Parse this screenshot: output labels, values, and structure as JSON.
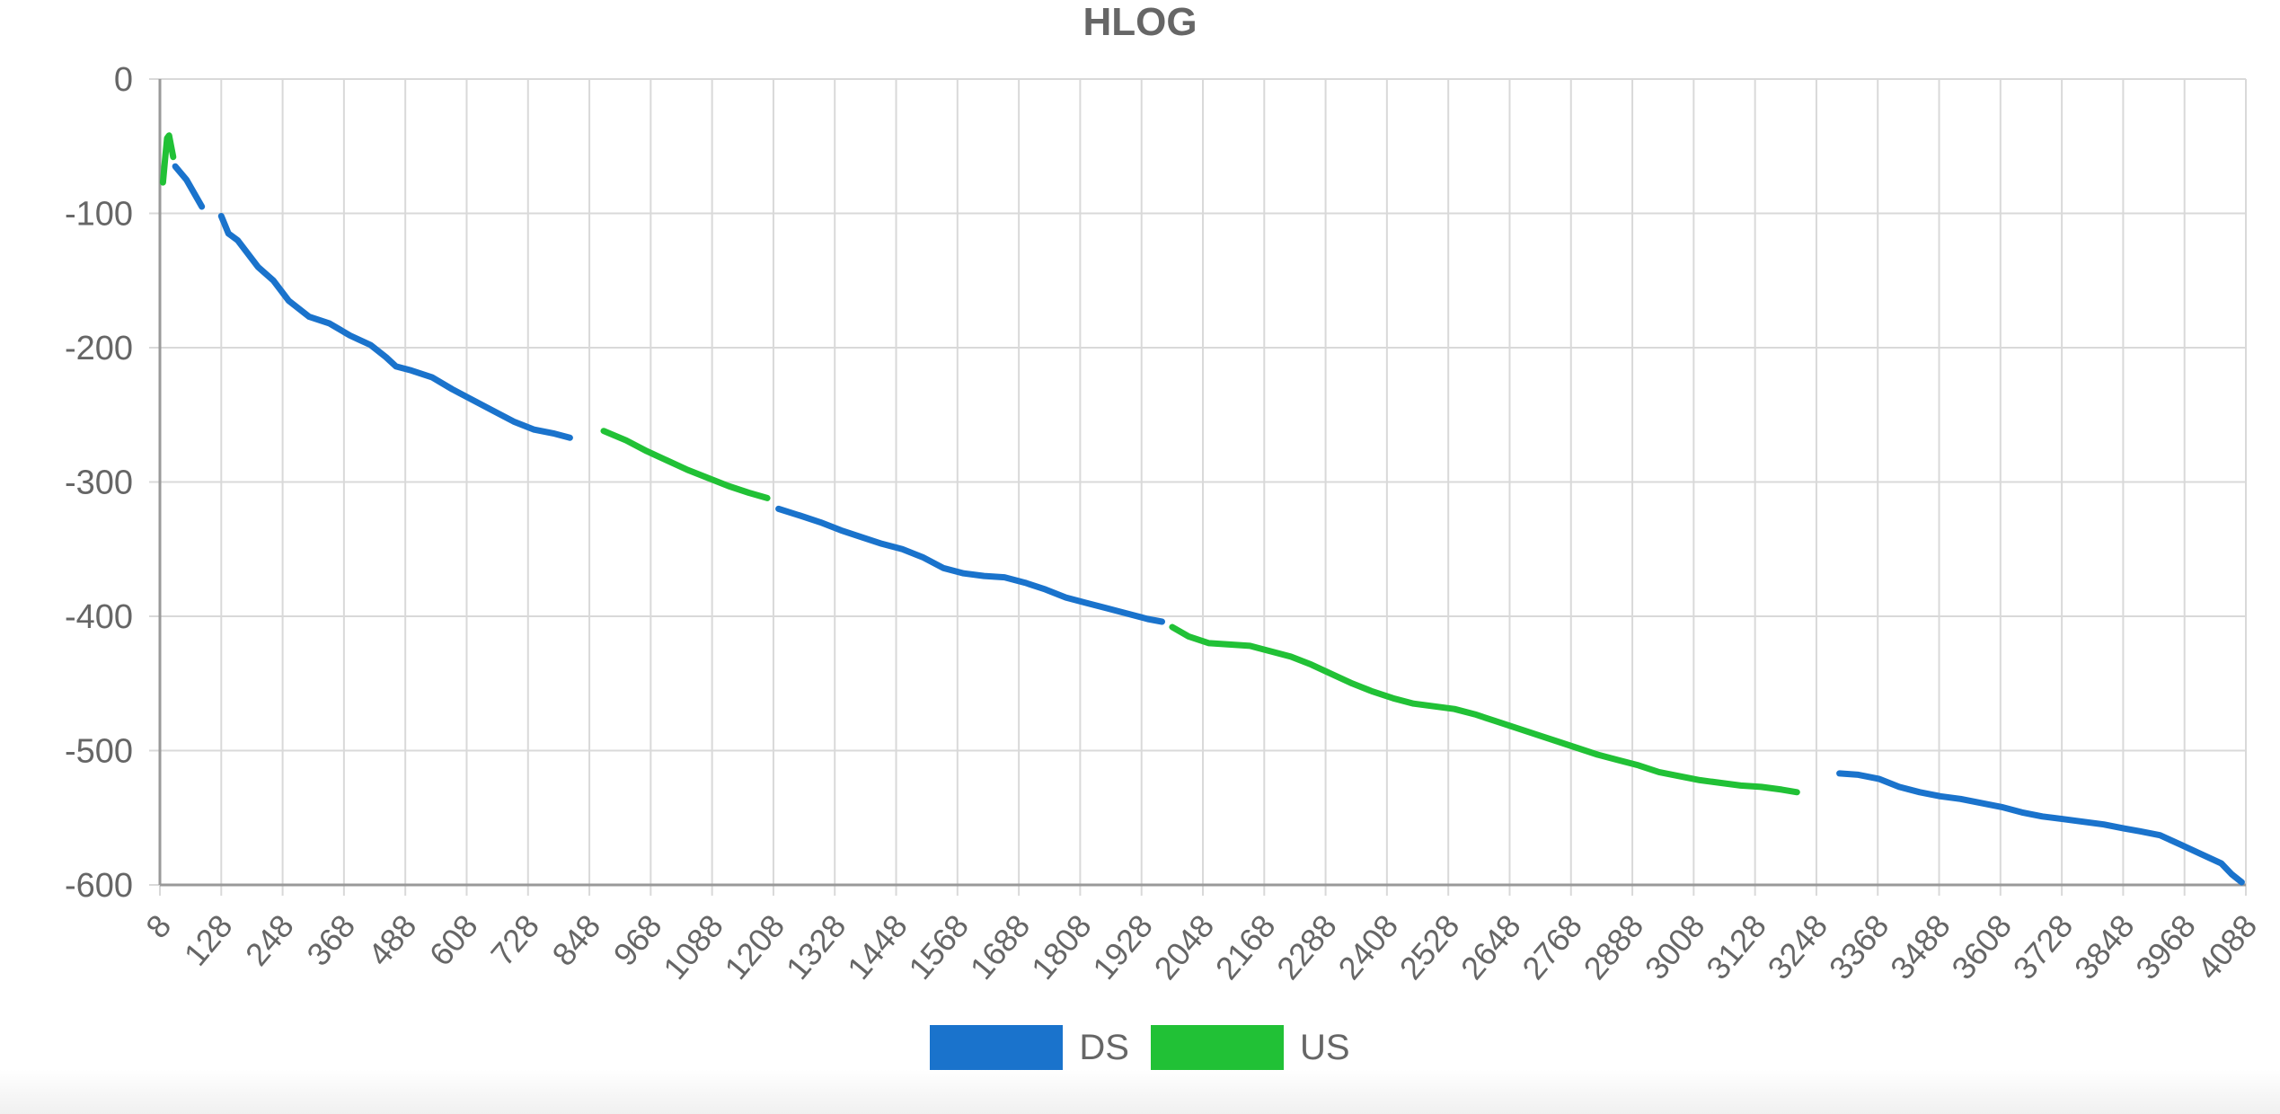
{
  "chart_data": {
    "type": "line",
    "title": "HLOG",
    "xlabel": "",
    "ylabel": "",
    "ylim": [
      -600,
      0
    ],
    "yticks": [
      0,
      -100,
      -200,
      -300,
      -400,
      -500,
      -600
    ],
    "xlim": [
      8,
      4088
    ],
    "xticks": [
      8,
      128,
      248,
      368,
      488,
      608,
      728,
      848,
      968,
      1088,
      1208,
      1328,
      1448,
      1568,
      1688,
      1808,
      1928,
      2048,
      2168,
      2288,
      2408,
      2528,
      2648,
      2768,
      2888,
      3008,
      3128,
      3248,
      3368,
      3488,
      3608,
      3728,
      3848,
      3968,
      4088
    ],
    "grid": true,
    "legend_position": "bottom",
    "series": [
      {
        "name": "DS",
        "color": "#1a73cc",
        "segments": [
          [
            [
              38,
              -65
            ],
            [
              60,
              -75
            ],
            [
              90,
              -95
            ]
          ],
          [
            [
              128,
              -102
            ],
            [
              142,
              -115
            ],
            [
              160,
              -120
            ],
            [
              200,
              -140
            ],
            [
              230,
              -150
            ],
            [
              260,
              -165
            ],
            [
              300,
              -177
            ],
            [
              340,
              -182
            ],
            [
              380,
              -191
            ],
            [
              420,
              -198
            ],
            [
              450,
              -207
            ],
            [
              470,
              -214
            ],
            [
              500,
              -217
            ],
            [
              540,
              -222
            ],
            [
              580,
              -231
            ],
            [
              620,
              -239
            ],
            [
              660,
              -247
            ],
            [
              700,
              -255
            ],
            [
              740,
              -261
            ],
            [
              780,
              -264
            ],
            [
              810,
              -267
            ]
          ],
          [
            [
              1218,
              -320
            ],
            [
              1260,
              -325
            ],
            [
              1300,
              -330
            ],
            [
              1340,
              -336
            ],
            [
              1380,
              -341
            ],
            [
              1420,
              -346
            ],
            [
              1460,
              -350
            ],
            [
              1500,
              -356
            ],
            [
              1540,
              -364
            ],
            [
              1580,
              -368
            ],
            [
              1620,
              -370
            ],
            [
              1660,
              -371
            ],
            [
              1700,
              -375
            ],
            [
              1740,
              -380
            ],
            [
              1780,
              -386
            ],
            [
              1820,
              -390
            ],
            [
              1860,
              -394
            ],
            [
              1900,
              -398
            ],
            [
              1940,
              -402
            ],
            [
              1968,
              -404
            ]
          ],
          [
            [
              3293,
              -517
            ],
            [
              3330,
              -518
            ],
            [
              3370,
              -521
            ],
            [
              3410,
              -527
            ],
            [
              3450,
              -531
            ],
            [
              3490,
              -534
            ],
            [
              3530,
              -536
            ],
            [
              3570,
              -539
            ],
            [
              3610,
              -542
            ],
            [
              3650,
              -546
            ],
            [
              3690,
              -549
            ],
            [
              3730,
              -551
            ],
            [
              3770,
              -553
            ],
            [
              3810,
              -555
            ],
            [
              3850,
              -558
            ],
            [
              3880,
              -560
            ],
            [
              3920,
              -563
            ],
            [
              3960,
              -570
            ],
            [
              4000,
              -577
            ],
            [
              4040,
              -584
            ],
            [
              4060,
              -592
            ],
            [
              4080,
              -598
            ]
          ]
        ]
      },
      {
        "name": "US",
        "color": "#21c136",
        "segments": [
          [
            [
              14,
              -77
            ],
            [
              18,
              -60
            ],
            [
              22,
              -44
            ],
            [
              26,
              -42
            ],
            [
              30,
              -50
            ],
            [
              34,
              -58
            ]
          ],
          [
            [
              876,
              -262
            ],
            [
              920,
              -269
            ],
            [
              960,
              -277
            ],
            [
              1000,
              -284
            ],
            [
              1040,
              -291
            ],
            [
              1080,
              -297
            ],
            [
              1120,
              -303
            ],
            [
              1160,
              -308
            ],
            [
              1196,
              -312
            ]
          ],
          [
            [
              1988,
              -408
            ],
            [
              2020,
              -415
            ],
            [
              2060,
              -420
            ],
            [
              2100,
              -421
            ],
            [
              2140,
              -422
            ],
            [
              2180,
              -426
            ],
            [
              2220,
              -430
            ],
            [
              2260,
              -436
            ],
            [
              2300,
              -443
            ],
            [
              2340,
              -450
            ],
            [
              2380,
              -456
            ],
            [
              2420,
              -461
            ],
            [
              2460,
              -465
            ],
            [
              2500,
              -467
            ],
            [
              2540,
              -469
            ],
            [
              2580,
              -473
            ],
            [
              2620,
              -478
            ],
            [
              2660,
              -483
            ],
            [
              2700,
              -488
            ],
            [
              2740,
              -493
            ],
            [
              2780,
              -498
            ],
            [
              2820,
              -503
            ],
            [
              2860,
              -507
            ],
            [
              2900,
              -511
            ],
            [
              2940,
              -516
            ],
            [
              2980,
              -519
            ],
            [
              3020,
              -522
            ],
            [
              3060,
              -524
            ],
            [
              3100,
              -526
            ],
            [
              3140,
              -527
            ],
            [
              3180,
              -529
            ],
            [
              3210,
              -531
            ]
          ]
        ]
      }
    ]
  }
}
